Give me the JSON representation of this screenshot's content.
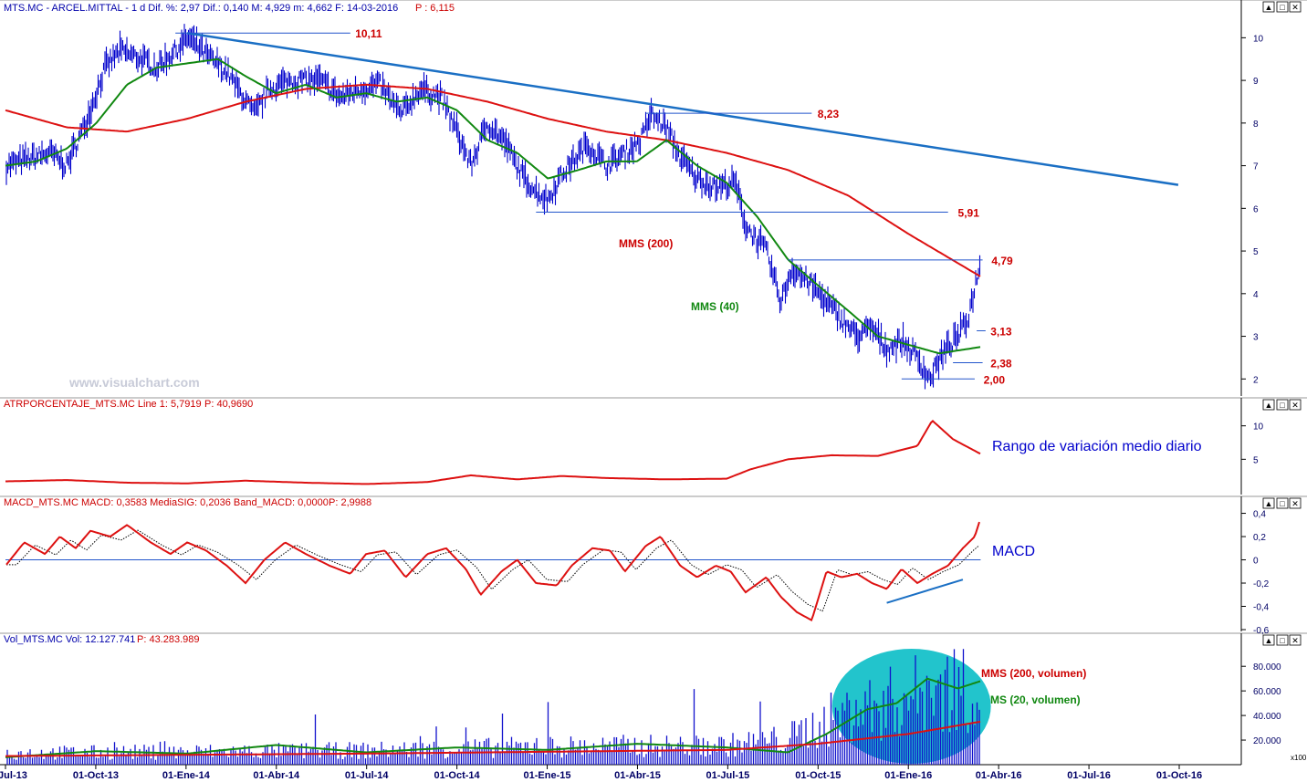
{
  "colors": {
    "price": "#0000cc",
    "mms200": "#dd1111",
    "mms40": "#118811",
    "trendline": "#1a6fc4",
    "hline": "#2255cc",
    "macd": "#dd1111",
    "signal": "#000000",
    "volume": "#1111cc",
    "vol_ellipse": "#22c4cc",
    "header_red": "#cc0000",
    "header_blue": "#0000aa",
    "axis_text": "#000066"
  },
  "header": {
    "main": "MTS.MC - ARCEL.MITTAL - 1 d Dif. %: 2,97  Dif.: 0,140  M: 4,929  m: 4,662  F: 14-03-2016",
    "main_p": "P : 6,115",
    "atr": "ATRPORCENTAJE_MTS.MC Line 1: 5,7919",
    "atr_p": "P: 40,9690",
    "macd": "MACD_MTS.MC MACD: 0,3583  MediaSIG: 0,2036  Band_MACD: 0,0000",
    "macd_p": "P: 2,9988",
    "vol": "Vol_MTS.MC Vol: 12.127.741",
    "vol_p": "P: 43.283.989"
  },
  "watermark": "www.visualchart.com",
  "annotations": {
    "mms200": "MMS (200)",
    "mms40": "MMS (40)",
    "atr_title": "Rango de variación medio diario",
    "macd_title": "MACD",
    "vol_mms200": "MMS (200, volumen)",
    "vol_mms20": "MMS (20, volumen)"
  },
  "window_buttons": [
    "▲",
    "□",
    "✕"
  ],
  "x100_label": "x100",
  "chart_data": [
    {
      "type": "line",
      "panel": "price",
      "x_ticks": [
        "01-Jul-13",
        "01-Oct-13",
        "01-Ene-14",
        "01-Abr-14",
        "01-Jul-14",
        "01-Oct-14",
        "01-Ene-15",
        "01-Abr-15",
        "01-Jul-15",
        "01-Oct-15",
        "01-Ene-16",
        "01-Abr-16",
        "01-Jul-16",
        "01-Oct-16"
      ],
      "y_ticks": [
        "10",
        "9",
        "8",
        "7",
        "6",
        "5",
        "4",
        "3",
        "2"
      ],
      "ylim": [
        1.6,
        10.5
      ],
      "price_levels": [
        {
          "label": "10,11",
          "value": 10.11
        },
        {
          "label": "8,23",
          "value": 8.23
        },
        {
          "label": "5,91",
          "value": 5.91
        },
        {
          "label": "4,79",
          "value": 4.79
        },
        {
          "label": "3,13",
          "value": 3.13
        },
        {
          "label": "2,38",
          "value": 2.38
        },
        {
          "label": "2,00",
          "value": 2.0
        }
      ],
      "price_anchors": [
        [
          "2013-07-01",
          7.0
        ],
        [
          "2013-08-15",
          7.3
        ],
        [
          "2013-09-01",
          7.0
        ],
        [
          "2013-09-20",
          8.0
        ],
        [
          "2013-10-10",
          9.3
        ],
        [
          "2013-10-25",
          9.7
        ],
        [
          "2013-11-15",
          9.5
        ],
        [
          "2013-12-01",
          9.3
        ],
        [
          "2013-12-20",
          9.7
        ],
        [
          "2014-01-02",
          10.0
        ],
        [
          "2014-01-20",
          9.6
        ],
        [
          "2014-02-10",
          9.2
        ],
        [
          "2014-03-10",
          8.2
        ],
        [
          "2014-03-25",
          8.8
        ],
        [
          "2014-04-15",
          9.0
        ],
        [
          "2014-05-15",
          9.0
        ],
        [
          "2014-06-05",
          8.6
        ],
        [
          "2014-06-25",
          8.8
        ],
        [
          "2014-07-15",
          8.9
        ],
        [
          "2014-08-05",
          8.2
        ],
        [
          "2014-08-25",
          8.8
        ],
        [
          "2014-09-15",
          8.6
        ],
        [
          "2014-10-01",
          7.8
        ],
        [
          "2014-10-15",
          7.0
        ],
        [
          "2014-11-01",
          8.0
        ],
        [
          "2014-11-20",
          7.5
        ],
        [
          "2014-12-05",
          6.8
        ],
        [
          "2014-12-20",
          6.4
        ],
        [
          "2015-01-01",
          6.2
        ],
        [
          "2015-01-15",
          6.8
        ],
        [
          "2015-02-10",
          7.5
        ],
        [
          "2015-03-01",
          7.0
        ],
        [
          "2015-03-20",
          7.3
        ],
        [
          "2015-04-05",
          7.6
        ],
        [
          "2015-04-15",
          8.2
        ],
        [
          "2015-05-01",
          7.9
        ],
        [
          "2015-05-15",
          7.2
        ],
        [
          "2015-06-01",
          6.7
        ],
        [
          "2015-06-20",
          6.5
        ],
        [
          "2015-07-10",
          6.6
        ],
        [
          "2015-07-20",
          5.6
        ],
        [
          "2015-08-10",
          5.0
        ],
        [
          "2015-08-25",
          3.8
        ],
        [
          "2015-09-05",
          4.6
        ],
        [
          "2015-09-25",
          4.2
        ],
        [
          "2015-10-10",
          3.8
        ],
        [
          "2015-10-25",
          3.4
        ],
        [
          "2015-11-10",
          3.0
        ],
        [
          "2015-11-25",
          3.2
        ],
        [
          "2015-12-10",
          2.7
        ],
        [
          "2015-12-25",
          2.9
        ],
        [
          "2016-01-10",
          2.5
        ],
        [
          "2016-01-22",
          2.0
        ],
        [
          "2016-02-05",
          2.6
        ],
        [
          "2016-02-20",
          3.0
        ],
        [
          "2016-03-01",
          3.4
        ],
        [
          "2016-03-14",
          4.8
        ]
      ],
      "mms40_anchors": [
        [
          "2013-07-01",
          7.0
        ],
        [
          "2013-08-01",
          7.1
        ],
        [
          "2013-09-01",
          7.4
        ],
        [
          "2013-10-01",
          8.0
        ],
        [
          "2013-11-01",
          8.9
        ],
        [
          "2013-12-01",
          9.3
        ],
        [
          "2014-01-01",
          9.4
        ],
        [
          "2014-02-01",
          9.5
        ],
        [
          "2014-03-01",
          9.1
        ],
        [
          "2014-04-01",
          8.7
        ],
        [
          "2014-05-01",
          8.9
        ],
        [
          "2014-06-01",
          8.6
        ],
        [
          "2014-07-01",
          8.7
        ],
        [
          "2014-08-01",
          8.5
        ],
        [
          "2014-09-01",
          8.6
        ],
        [
          "2014-10-01",
          8.3
        ],
        [
          "2014-11-01",
          7.6
        ],
        [
          "2014-12-01",
          7.3
        ],
        [
          "2015-01-01",
          6.7
        ],
        [
          "2015-02-01",
          6.9
        ],
        [
          "2015-03-01",
          7.1
        ],
        [
          "2015-04-01",
          7.1
        ],
        [
          "2015-05-01",
          7.6
        ],
        [
          "2015-06-01",
          7.0
        ],
        [
          "2015-07-01",
          6.6
        ],
        [
          "2015-08-01",
          5.8
        ],
        [
          "2015-09-01",
          4.8
        ],
        [
          "2015-10-01",
          4.2
        ],
        [
          "2015-11-01",
          3.6
        ],
        [
          "2015-12-01",
          3.0
        ],
        [
          "2016-01-01",
          2.8
        ],
        [
          "2016-02-01",
          2.6
        ],
        [
          "2016-03-14",
          2.75
        ]
      ],
      "mms200_anchors": [
        [
          "2013-07-01",
          8.3
        ],
        [
          "2013-09-01",
          7.9
        ],
        [
          "2013-11-01",
          7.8
        ],
        [
          "2014-01-01",
          8.1
        ],
        [
          "2014-03-01",
          8.5
        ],
        [
          "2014-05-01",
          8.8
        ],
        [
          "2014-07-01",
          8.9
        ],
        [
          "2014-09-01",
          8.8
        ],
        [
          "2014-11-01",
          8.5
        ],
        [
          "2015-01-01",
          8.1
        ],
        [
          "2015-03-01",
          7.8
        ],
        [
          "2015-05-01",
          7.6
        ],
        [
          "2015-07-01",
          7.3
        ],
        [
          "2015-09-01",
          6.9
        ],
        [
          "2015-11-01",
          6.3
        ],
        [
          "2016-01-01",
          5.4
        ],
        [
          "2016-03-14",
          4.4
        ]
      ],
      "trendline": [
        [
          "2014-01-01",
          10.11
        ],
        [
          "2016-09-30",
          6.55
        ]
      ]
    },
    {
      "type": "line",
      "panel": "atr",
      "y_ticks": [
        "10",
        "5"
      ],
      "ylim": [
        0,
        12
      ],
      "anchors": [
        [
          "2013-07-01",
          1.7
        ],
        [
          "2013-09-01",
          1.9
        ],
        [
          "2013-11-01",
          1.5
        ],
        [
          "2014-01-01",
          1.4
        ],
        [
          "2014-03-01",
          1.8
        ],
        [
          "2014-05-01",
          1.5
        ],
        [
          "2014-07-01",
          1.3
        ],
        [
          "2014-09-01",
          1.6
        ],
        [
          "2014-10-15",
          2.6
        ],
        [
          "2014-12-01",
          2.0
        ],
        [
          "2015-01-15",
          2.5
        ],
        [
          "2015-03-01",
          2.2
        ],
        [
          "2015-05-01",
          2.0
        ],
        [
          "2015-07-01",
          2.1
        ],
        [
          "2015-07-25",
          3.5
        ],
        [
          "2015-09-01",
          5.0
        ],
        [
          "2015-10-15",
          5.6
        ],
        [
          "2015-12-01",
          5.5
        ],
        [
          "2016-01-10",
          7.0
        ],
        [
          "2016-01-25",
          10.8
        ],
        [
          "2016-02-15",
          8.0
        ],
        [
          "2016-03-14",
          5.8
        ]
      ]
    },
    {
      "type": "line",
      "panel": "macd",
      "y_ticks": [
        "0,4",
        "0,2",
        "0",
        "-0,2",
        "-0,4",
        "-0,6"
      ],
      "ylim": [
        -0.6,
        0.42
      ],
      "macd_anchors": [
        [
          "2013-07-01",
          -0.05
        ],
        [
          "2013-07-20",
          0.15
        ],
        [
          "2013-08-10",
          0.05
        ],
        [
          "2013-08-25",
          0.2
        ],
        [
          "2013-09-10",
          0.1
        ],
        [
          "2013-09-25",
          0.25
        ],
        [
          "2013-10-15",
          0.2
        ],
        [
          "2013-11-01",
          0.3
        ],
        [
          "2013-11-25",
          0.15
        ],
        [
          "2013-12-15",
          0.05
        ],
        [
          "2014-01-01",
          0.15
        ],
        [
          "2014-01-20",
          0.08
        ],
        [
          "2014-02-10",
          -0.05
        ],
        [
          "2014-03-01",
          -0.2
        ],
        [
          "2014-03-20",
          0.0
        ],
        [
          "2014-04-10",
          0.15
        ],
        [
          "2014-05-01",
          0.05
        ],
        [
          "2014-05-25",
          -0.05
        ],
        [
          "2014-06-15",
          -0.12
        ],
        [
          "2014-07-01",
          0.05
        ],
        [
          "2014-07-20",
          0.08
        ],
        [
          "2014-08-10",
          -0.15
        ],
        [
          "2014-09-01",
          0.05
        ],
        [
          "2014-09-20",
          0.1
        ],
        [
          "2014-10-10",
          -0.08
        ],
        [
          "2014-10-25",
          -0.3
        ],
        [
          "2014-11-15",
          -0.1
        ],
        [
          "2014-12-01",
          0.0
        ],
        [
          "2014-12-20",
          -0.2
        ],
        [
          "2015-01-10",
          -0.22
        ],
        [
          "2015-01-25",
          -0.05
        ],
        [
          "2015-02-15",
          0.1
        ],
        [
          "2015-03-05",
          0.08
        ],
        [
          "2015-03-20",
          -0.1
        ],
        [
          "2015-04-10",
          0.12
        ],
        [
          "2015-04-25",
          0.2
        ],
        [
          "2015-05-15",
          -0.05
        ],
        [
          "2015-06-01",
          -0.15
        ],
        [
          "2015-06-20",
          -0.05
        ],
        [
          "2015-07-05",
          -0.1
        ],
        [
          "2015-07-20",
          -0.28
        ],
        [
          "2015-08-10",
          -0.15
        ],
        [
          "2015-08-25",
          -0.32
        ],
        [
          "2015-09-10",
          -0.45
        ],
        [
          "2015-09-25",
          -0.52
        ],
        [
          "2015-10-10",
          -0.1
        ],
        [
          "2015-10-25",
          -0.15
        ],
        [
          "2015-11-10",
          -0.12
        ],
        [
          "2015-11-25",
          -0.2
        ],
        [
          "2015-12-10",
          -0.25
        ],
        [
          "2015-12-25",
          -0.08
        ],
        [
          "2016-01-10",
          -0.2
        ],
        [
          "2016-01-25",
          -0.12
        ],
        [
          "2016-02-10",
          -0.05
        ],
        [
          "2016-02-25",
          0.1
        ],
        [
          "2016-03-08",
          0.2
        ],
        [
          "2016-03-14",
          0.36
        ]
      ]
    },
    {
      "type": "bar",
      "panel": "volume",
      "y_ticks": [
        "80.000",
        "60.000",
        "40.000",
        "20.000"
      ],
      "ylim": [
        0,
        95000
      ],
      "volume_anchors": [
        [
          "2013-07-01",
          9000
        ],
        [
          "2014-01-01",
          10000
        ],
        [
          "2014-07-01",
          11000
        ],
        [
          "2015-01-01",
          14000
        ],
        [
          "2015-07-01",
          15000
        ],
        [
          "2015-09-01",
          20000
        ],
        [
          "2015-10-15",
          35000
        ],
        [
          "2015-12-01",
          45000
        ],
        [
          "2016-01-15",
          55000
        ],
        [
          "2016-03-14",
          65000
        ]
      ],
      "vol_mms20_anchors": [
        [
          "2013-07-01",
          6000
        ],
        [
          "2013-10-01",
          11000
        ],
        [
          "2014-01-01",
          9000
        ],
        [
          "2014-04-01",
          16000
        ],
        [
          "2014-07-01",
          10000
        ],
        [
          "2014-10-01",
          14000
        ],
        [
          "2015-01-01",
          12000
        ],
        [
          "2015-04-01",
          17000
        ],
        [
          "2015-07-01",
          14000
        ],
        [
          "2015-09-01",
          10000
        ],
        [
          "2015-10-10",
          25000
        ],
        [
          "2015-11-20",
          45000
        ],
        [
          "2015-12-20",
          50000
        ],
        [
          "2016-01-20",
          70000
        ],
        [
          "2016-02-20",
          62000
        ],
        [
          "2016-03-14",
          68000
        ]
      ],
      "vol_mms200_anchors": [
        [
          "2013-07-01",
          7000
        ],
        [
          "2014-07-01",
          9000
        ],
        [
          "2015-07-01",
          12000
        ],
        [
          "2015-10-01",
          17000
        ],
        [
          "2016-01-01",
          25000
        ],
        [
          "2016-03-14",
          35000
        ]
      ]
    }
  ]
}
